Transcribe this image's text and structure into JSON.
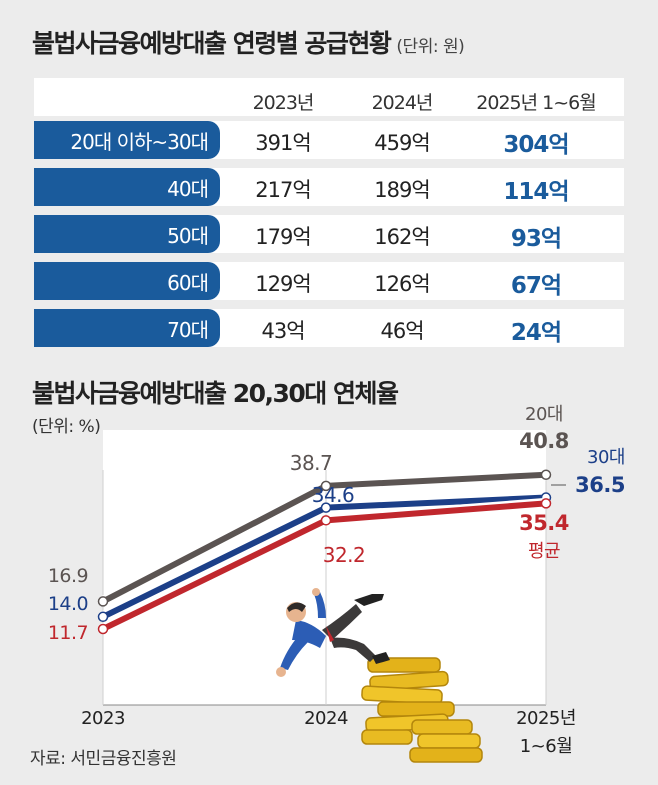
{
  "table": {
    "title": "불법사금융예방대출 연령별 공급현황",
    "unit": "(단위: 원)",
    "columns": [
      "2023년",
      "2024년",
      "2025년 1~6월"
    ],
    "rows": [
      {
        "age": "20대 이하~30대",
        "values": [
          "391억",
          "459억",
          "304억"
        ]
      },
      {
        "age": "40대",
        "values": [
          "217억",
          "189억",
          "114억"
        ]
      },
      {
        "age": "50대",
        "values": [
          "179억",
          "162억",
          "93억"
        ]
      },
      {
        "age": "60대",
        "values": [
          "129억",
          "126억",
          "67억"
        ]
      },
      {
        "age": "70대",
        "values": [
          "43억",
          "46억",
          "24억"
        ]
      }
    ]
  },
  "chart_data": {
    "type": "line",
    "title": "불법사금융예방대출 20,30대 연체율",
    "unit": "(단위: %)",
    "x": [
      "2023",
      "2024",
      "2025년\n1~6월"
    ],
    "x_labels": [
      "2023",
      "2024",
      "2025년",
      "1~6월"
    ],
    "series": [
      {
        "name": "20대",
        "values": [
          16.9,
          38.7,
          40.8
        ],
        "labels": [
          "16.9",
          "38.7",
          "40.8"
        ],
        "color": "#5b5452"
      },
      {
        "name": "30대",
        "values": [
          14.0,
          34.6,
          36.5
        ],
        "labels": [
          "14.0",
          "34.6",
          "36.5"
        ],
        "color": "#1c3f88"
      },
      {
        "name": "평균",
        "values": [
          11.7,
          32.2,
          35.4
        ],
        "labels": [
          "11.7",
          "32.2",
          "35.4"
        ],
        "color": "#c0272d"
      }
    ]
  },
  "source": "자료: 서민금융진흥원"
}
